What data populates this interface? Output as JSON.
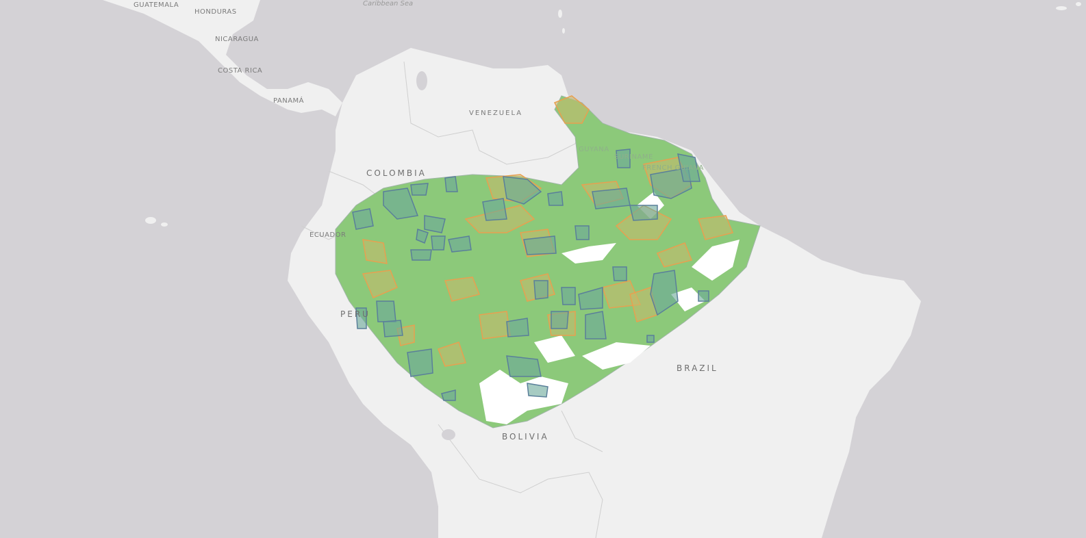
{
  "map": {
    "labels": {
      "guatemala": "GUATEMALA",
      "honduras": "HONDURAS",
      "nicaragua": "NICARAGUA",
      "costa_rica": "COSTA RICA",
      "panama": "PANAMÁ",
      "caribbean_sea": "Caribbean Sea",
      "venezuela": "VENEZUELA",
      "colombia": "COLOMBIA",
      "ecuador": "ECUADOR",
      "peru": "PERU",
      "guyana": "GUYANA",
      "suriname": "SURINAME",
      "french_guiana": "FRENCH GUIANA",
      "brazil": "BRAZIL",
      "bolivia": "BOLIVIA"
    },
    "colors": {
      "ocean": "#d4d2d6",
      "land": "#f0f0f0",
      "border": "#c8c8c8",
      "forest": "#8cc97a",
      "protected_area_fill": "#6aa89a",
      "protected_area_stroke": "#5a7f9a",
      "indigenous_fill": "#c8b86a",
      "indigenous_stroke": "#e8a050",
      "cleared": "#ffffff"
    }
  }
}
